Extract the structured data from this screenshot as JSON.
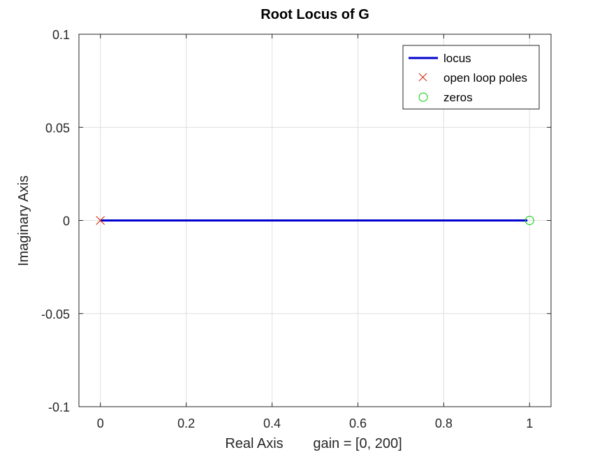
{
  "chart_data": {
    "type": "line",
    "title": "Root Locus of G",
    "xlabel": "Real Axis",
    "xlabel_note": "gain = [0, 200]",
    "ylabel": "Imaginary Axis",
    "xlim": [
      -0.05,
      1.05
    ],
    "ylim": [
      -0.1,
      0.1
    ],
    "xticks": [
      0,
      0.2,
      0.4,
      0.6,
      0.8,
      1
    ],
    "xtick_labels": [
      "0",
      "0.2",
      "0.4",
      "0.6",
      "0.8",
      "1"
    ],
    "yticks": [
      -0.1,
      -0.05,
      0,
      0.05,
      0.1
    ],
    "ytick_labels": [
      "-0.1",
      "-0.05",
      "0",
      "0.05",
      "0.1"
    ],
    "grid": true,
    "legend_position": "top-right",
    "series": [
      {
        "name": "locus",
        "kind": "line",
        "color": "#0000cc",
        "x": [
          0,
          0.1,
          0.2,
          0.3,
          0.4,
          0.5,
          0.6,
          0.7,
          0.8,
          0.9,
          0.995
        ],
        "y": [
          0,
          0,
          0,
          0,
          0,
          0,
          0,
          0,
          0,
          0,
          0
        ]
      },
      {
        "name": "open loop poles",
        "kind": "marker-x",
        "color": "#cc2200",
        "x": [
          0
        ],
        "y": [
          0
        ]
      },
      {
        "name": "zeros",
        "kind": "marker-o",
        "color": "#00cc00",
        "x": [
          1
        ],
        "y": [
          0
        ]
      }
    ]
  }
}
